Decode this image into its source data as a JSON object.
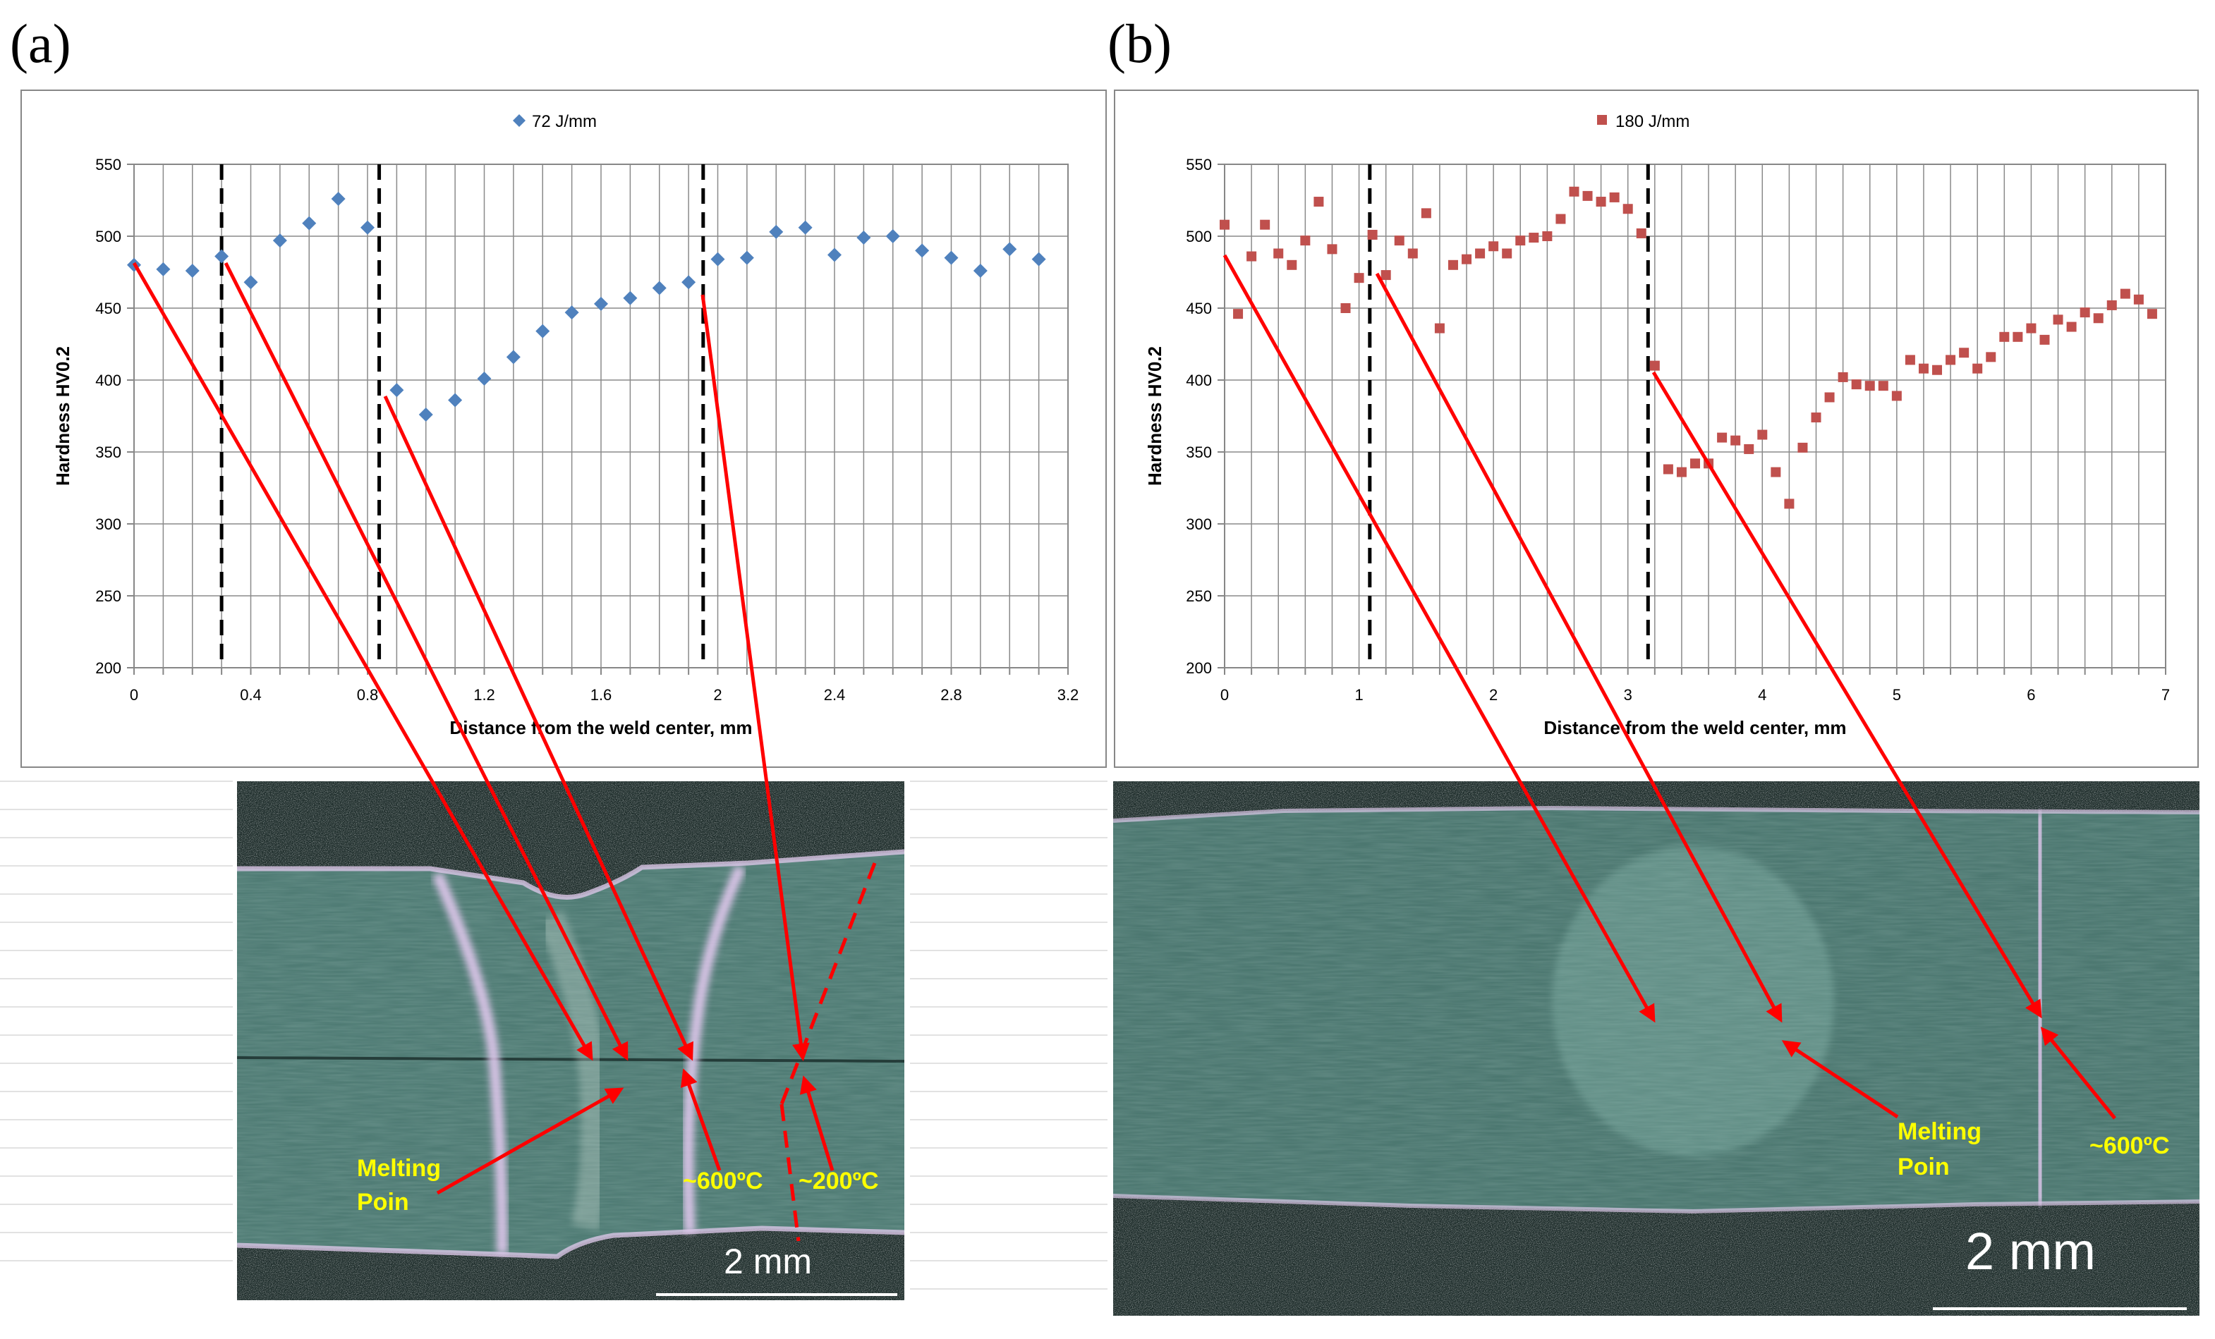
{
  "panels": [
    {
      "label": "(a)",
      "legend": "72 J/mm",
      "marker": "diamond",
      "color": "#4f81bd",
      "annotations": {
        "melting": [
          "Melting",
          "Poin"
        ],
        "temp600": "~600ºC",
        "temp200": "~200ºC"
      },
      "scale_bar": "2 mm"
    },
    {
      "label": "(b)",
      "legend": "180 J/mm",
      "marker": "square",
      "color": "#c0504d",
      "annotations": {
        "melting": [
          "Melting",
          "Poin"
        ],
        "temp600": "~600ºC"
      },
      "scale_bar": "2 mm"
    }
  ],
  "chart_data": [
    {
      "type": "scatter",
      "title": "",
      "xlabel": "Distance from the weld center, mm",
      "ylabel": "Hardness HV0.2",
      "xlim": [
        0,
        3.2
      ],
      "ylim": [
        200,
        550
      ],
      "xticks": [
        0,
        0.4,
        0.8,
        1.2,
        1.6,
        2,
        2.4,
        2.8,
        3.2
      ],
      "xtick_labels": [
        "0",
        "0.4",
        "0.8",
        "1.2",
        "1.6",
        "2",
        "2.4",
        "2.8",
        "3.2"
      ],
      "x_minor_step": 0.1,
      "yticks": [
        200,
        250,
        300,
        350,
        400,
        450,
        500,
        550
      ],
      "vlines": [
        0.3,
        0.84,
        1.95
      ],
      "series": [
        {
          "name": "72 J/mm",
          "x": [
            0,
            0.1,
            0.2,
            0.3,
            0.4,
            0.5,
            0.6,
            0.7,
            0.8,
            0.9,
            1.0,
            1.1,
            1.2,
            1.3,
            1.4,
            1.5,
            1.6,
            1.7,
            1.8,
            1.9,
            2.0,
            2.1,
            2.2,
            2.3,
            2.4,
            2.5,
            2.6,
            2.7,
            2.8,
            2.9,
            3.0,
            3.1
          ],
          "y": [
            480,
            477,
            476,
            486,
            468,
            497,
            509,
            526,
            506,
            393,
            376,
            386,
            401,
            416,
            434,
            447,
            453,
            457,
            464,
            468,
            484,
            485,
            503,
            506,
            487,
            499,
            500,
            490,
            485,
            476,
            491,
            484
          ]
        }
      ]
    },
    {
      "type": "scatter",
      "title": "",
      "xlabel": "Distance from the weld center, mm",
      "ylabel": "Hardness HV0.2",
      "xlim": [
        0,
        7
      ],
      "ylim": [
        200,
        550
      ],
      "xticks": [
        0,
        1,
        2,
        3,
        4,
        5,
        6,
        7
      ],
      "xtick_labels": [
        "0",
        "1",
        "2",
        "3",
        "4",
        "5",
        "6",
        "7"
      ],
      "x_minor_step": 0.2,
      "yticks": [
        200,
        250,
        300,
        350,
        400,
        450,
        500,
        550
      ],
      "vlines": [
        1.08,
        3.15
      ],
      "series": [
        {
          "name": "180 J/mm",
          "x": [
            0,
            0.1,
            0.2,
            0.3,
            0.4,
            0.5,
            0.6,
            0.7,
            0.8,
            0.9,
            1.0,
            1.1,
            1.2,
            1.3,
            1.4,
            1.5,
            1.6,
            1.7,
            1.8,
            1.9,
            2.0,
            2.1,
            2.2,
            2.3,
            2.4,
            2.5,
            2.6,
            2.7,
            2.8,
            2.9,
            3.0,
            3.1,
            3.2,
            3.3,
            3.4,
            3.5,
            3.6,
            3.7,
            3.8,
            3.9,
            4.0,
            4.1,
            4.2,
            4.3,
            4.4,
            4.5,
            4.6,
            4.7,
            4.8,
            4.9,
            5.0,
            5.1,
            5.2,
            5.3,
            5.4,
            5.5,
            5.6,
            5.7,
            5.8,
            5.9,
            6.0,
            6.1,
            6.2,
            6.3,
            6.4,
            6.5,
            6.6,
            6.7,
            6.8,
            6.9
          ],
          "y": [
            508,
            446,
            486,
            508,
            488,
            480,
            497,
            524,
            491,
            450,
            471,
            501,
            473,
            497,
            488,
            516,
            436,
            480,
            484,
            488,
            493,
            488,
            497,
            499,
            500,
            512,
            531,
            528,
            524,
            527,
            519,
            502,
            410,
            338,
            336,
            342,
            342,
            360,
            358,
            352,
            362,
            336,
            314,
            353,
            374,
            388,
            402,
            397,
            396,
            396,
            389,
            414,
            408,
            407,
            414,
            419,
            408,
            416,
            430,
            430,
            436,
            428,
            442,
            437,
            447,
            443,
            452,
            460,
            456,
            446
          ]
        }
      ]
    }
  ]
}
